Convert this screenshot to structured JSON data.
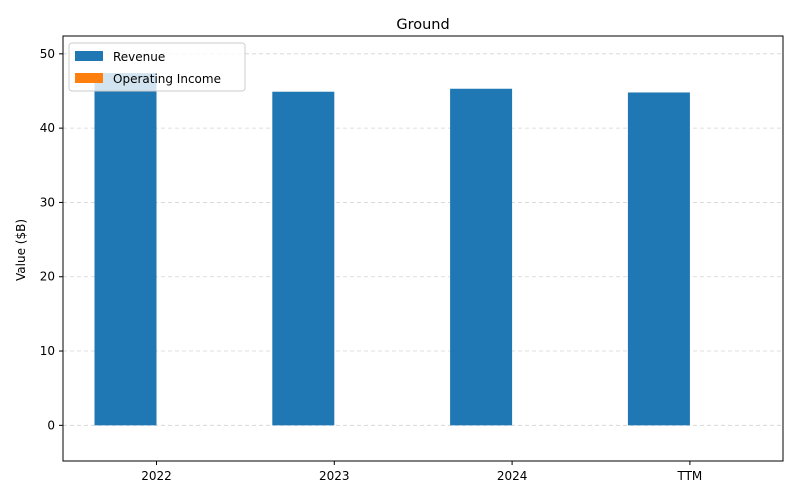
{
  "chart_data": {
    "type": "bar",
    "title": "Ground",
    "xlabel": "",
    "ylabel": "Value ($B)",
    "categories": [
      "2022",
      "2023",
      "2024",
      "TTM"
    ],
    "series": [
      {
        "name": "Revenue",
        "color": "#1f77b4",
        "values": [
          47.4,
          44.9,
          45.3,
          44.8
        ]
      },
      {
        "name": "Operating Income",
        "color": "#ff7f0e",
        "values": [
          0,
          0,
          0,
          0
        ]
      }
    ],
    "ylim": [
      -4.8,
      52.4
    ],
    "yticks": [
      0,
      10,
      20,
      30,
      40,
      50
    ],
    "grid": true,
    "legend_position": "top-left"
  }
}
